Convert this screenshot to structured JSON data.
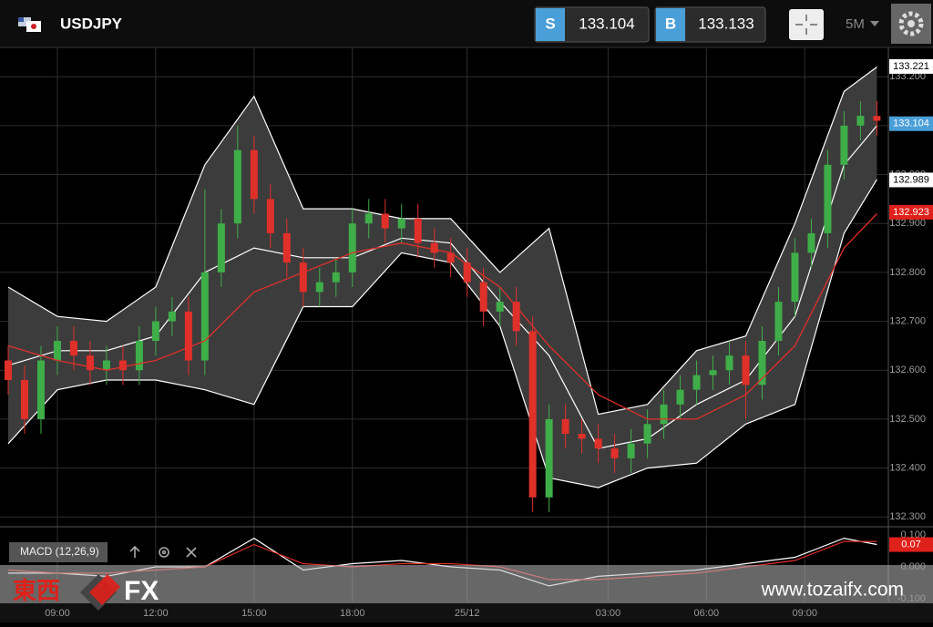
{
  "header": {
    "symbol": "USDJPY",
    "sell_label": "S",
    "sell_price": 133.104,
    "buy_label": "B",
    "buy_price": 133.133,
    "timeframe": "5M"
  },
  "chart_data": [
    {
      "type": "candlestick",
      "x": [
        0,
        1,
        2,
        3,
        4,
        5,
        6,
        7,
        8,
        9,
        10,
        11,
        12,
        13,
        14,
        15,
        16,
        17,
        18,
        19,
        20,
        21,
        22,
        23,
        24,
        25,
        26,
        27,
        28,
        29,
        30,
        31,
        32,
        33,
        34,
        35,
        36,
        37,
        38,
        39,
        40,
        41,
        42,
        43,
        44,
        45,
        46,
        47,
        48,
        49,
        50,
        51,
        52,
        53
      ],
      "open": [
        132.62,
        132.58,
        132.5,
        132.62,
        132.66,
        132.63,
        132.6,
        132.62,
        132.6,
        132.66,
        132.7,
        132.72,
        132.62,
        132.8,
        132.9,
        133.05,
        132.95,
        132.88,
        132.82,
        132.76,
        132.78,
        132.8,
        132.9,
        132.92,
        132.89,
        132.91,
        132.86,
        132.84,
        132.82,
        132.78,
        132.72,
        132.74,
        132.68,
        132.34,
        132.5,
        132.47,
        132.46,
        132.44,
        132.42,
        132.45,
        132.49,
        132.53,
        132.56,
        132.59,
        132.6,
        132.63,
        132.57,
        132.66,
        132.74,
        132.84,
        132.88,
        133.02,
        133.1,
        133.12
      ],
      "high": [
        132.65,
        132.61,
        132.65,
        132.69,
        132.69,
        132.66,
        132.65,
        132.65,
        132.69,
        132.73,
        132.75,
        132.75,
        132.97,
        132.93,
        133.1,
        133.08,
        132.98,
        132.91,
        132.85,
        132.81,
        132.83,
        132.93,
        132.95,
        132.95,
        132.94,
        132.94,
        132.89,
        132.87,
        132.85,
        132.81,
        132.77,
        132.77,
        132.71,
        132.53,
        132.53,
        132.5,
        132.49,
        132.47,
        132.48,
        132.52,
        132.56,
        132.59,
        132.62,
        132.63,
        132.66,
        132.66,
        132.69,
        132.77,
        132.87,
        132.91,
        133.05,
        133.13,
        133.15,
        133.15
      ],
      "low": [
        132.55,
        132.47,
        132.47,
        132.59,
        132.6,
        132.57,
        132.57,
        132.57,
        132.57,
        132.63,
        132.67,
        132.59,
        132.59,
        132.77,
        132.87,
        132.92,
        132.85,
        132.79,
        132.73,
        132.73,
        132.75,
        132.77,
        132.87,
        132.86,
        132.86,
        132.83,
        132.81,
        132.79,
        132.75,
        132.69,
        132.69,
        132.65,
        132.31,
        132.31,
        132.44,
        132.43,
        132.41,
        132.39,
        132.39,
        132.42,
        132.46,
        132.5,
        132.53,
        132.56,
        132.57,
        132.5,
        132.54,
        132.63,
        132.71,
        132.81,
        132.85,
        132.99,
        133.07,
        133.08
      ],
      "close": [
        132.58,
        132.5,
        132.62,
        132.66,
        132.63,
        132.6,
        132.62,
        132.6,
        132.66,
        132.7,
        132.72,
        132.62,
        132.8,
        132.9,
        133.05,
        132.95,
        132.88,
        132.82,
        132.76,
        132.78,
        132.8,
        132.9,
        132.92,
        132.89,
        132.91,
        132.86,
        132.84,
        132.82,
        132.78,
        132.72,
        132.74,
        132.68,
        132.34,
        132.5,
        132.47,
        132.46,
        132.44,
        132.42,
        132.45,
        132.49,
        132.53,
        132.56,
        132.59,
        132.6,
        132.63,
        132.57,
        132.66,
        132.74,
        132.84,
        132.88,
        133.02,
        133.1,
        133.12,
        133.11
      ],
      "up_color": "#3fae49",
      "down_color": "#e0302a",
      "line_x": [
        0,
        3,
        6,
        9,
        12,
        15,
        18,
        21,
        24,
        27,
        30,
        33,
        36,
        39,
        42,
        45,
        48,
        51,
        53
      ],
      "band": {
        "color": "#ffffff",
        "fill": "#3c3c3c",
        "upper": [
          132.77,
          132.71,
          132.7,
          132.77,
          133.02,
          133.16,
          132.93,
          132.93,
          132.91,
          132.91,
          132.8,
          132.89,
          132.51,
          132.53,
          132.64,
          132.67,
          132.9,
          133.17,
          133.22
        ],
        "middle": [
          132.61,
          132.64,
          132.64,
          132.67,
          132.8,
          132.85,
          132.83,
          132.83,
          132.87,
          132.86,
          132.74,
          132.63,
          132.44,
          132.46,
          132.53,
          132.58,
          132.71,
          133.02,
          133.1
        ],
        "lower": [
          132.45,
          132.56,
          132.58,
          132.58,
          132.56,
          132.53,
          132.73,
          132.73,
          132.84,
          132.82,
          132.69,
          132.38,
          132.36,
          132.4,
          132.41,
          132.49,
          132.53,
          132.88,
          132.99
        ]
      },
      "ma": {
        "color": "#e0302a",
        "values": [
          132.65,
          132.62,
          132.6,
          132.62,
          132.66,
          132.76,
          132.8,
          132.84,
          132.86,
          132.84,
          132.77,
          132.65,
          132.55,
          132.5,
          132.5,
          132.55,
          132.65,
          132.85,
          132.92
        ]
      },
      "xlim": [
        -0.5,
        53.7
      ],
      "xticks": [
        {
          "value": 3,
          "label": "09:00"
        },
        {
          "value": 9,
          "label": "12:00"
        },
        {
          "value": 15,
          "label": "15:00"
        },
        {
          "value": 21,
          "label": "18:00"
        },
        {
          "value": 28,
          "label": "25/12"
        },
        {
          "value": 36.6,
          "label": "03:00"
        },
        {
          "value": 42.6,
          "label": "06:00"
        },
        {
          "value": 48.6,
          "label": "09:00"
        }
      ],
      "ylim": [
        132.28,
        133.26
      ],
      "yticks": [
        {
          "value": 132.3,
          "label": "132.300"
        },
        {
          "value": 132.4,
          "label": "132.400"
        },
        {
          "value": 132.5,
          "label": "132.500"
        },
        {
          "value": 132.6,
          "label": "132.600"
        },
        {
          "value": 132.7,
          "label": "132.700"
        },
        {
          "value": 132.8,
          "label": "132.800"
        },
        {
          "value": 132.9,
          "label": "132.900"
        },
        {
          "value": 133.0,
          "label": "133.000"
        },
        {
          "value": 133.1,
          "label": "133.100"
        },
        {
          "value": 133.2,
          "label": "133.200"
        }
      ],
      "grid": true,
      "markers": [
        {
          "value": 133.221,
          "color": "#ffffff"
        },
        {
          "value": 133.104,
          "color": "#4a9fd8"
        },
        {
          "value": 132.989,
          "color": "#ffffff"
        },
        {
          "value": 132.923,
          "color": "#e0201a"
        }
      ]
    },
    {
      "type": "line",
      "title": "MACD (12,26,9)",
      "x": [
        0,
        3,
        6,
        9,
        12,
        15,
        18,
        21,
        24,
        27,
        30,
        33,
        36,
        39,
        42,
        45,
        48,
        51,
        53
      ],
      "series": [
        {
          "color": "#ffffff",
          "values": [
            -0.02,
            -0.02,
            -0.03,
            0.0,
            0.0,
            0.09,
            -0.01,
            0.01,
            0.02,
            0.0,
            -0.01,
            -0.06,
            -0.03,
            -0.02,
            -0.01,
            0.01,
            0.03,
            0.09,
            0.07
          ]
        },
        {
          "color": "#e0302a",
          "values": [
            -0.01,
            -0.02,
            -0.02,
            -0.01,
            0.0,
            0.07,
            0.01,
            0.0,
            0.01,
            0.01,
            0.0,
            -0.04,
            -0.04,
            -0.03,
            -0.02,
            0.0,
            0.02,
            0.08,
            0.08
          ]
        }
      ],
      "xlim": [
        -0.5,
        53.7
      ],
      "ylim": [
        -0.109,
        0.126
      ],
      "yticks": [
        {
          "value": 0.1,
          "label": "0.100"
        },
        {
          "value": 0,
          "label": "0.000"
        },
        {
          "value": -0.1,
          "label": "-0.100"
        }
      ],
      "markers": [
        {
          "value": 0.07,
          "color": "#e0201a"
        }
      ]
    }
  ],
  "watermark": {
    "brand": "東西",
    "fx": "FX",
    "url": "www.tozaifx.com"
  }
}
